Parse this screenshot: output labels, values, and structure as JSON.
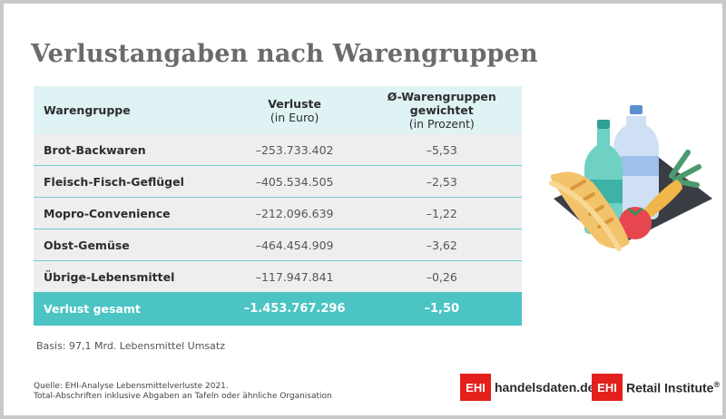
{
  "title": "Verlustangaben nach Warengruppen",
  "table": {
    "headers": [
      {
        "line1": "Warengruppe",
        "line2": "",
        "line3": ""
      },
      {
        "line1": "Verluste",
        "line2": "(in Euro)",
        "line3": ""
      },
      {
        "line1": "Ø-Warengruppen",
        "line2": "gewichtet",
        "line3": "(in Prozent)"
      }
    ],
    "rows": [
      {
        "group": "Brot-Backwaren",
        "loss": "–253.733.402",
        "pct": "–5,53"
      },
      {
        "group": "Fleisch-Fisch-Geflügel",
        "loss": "–405.534.505",
        "pct": "–2,53"
      },
      {
        "group": "Mopro-Convenience",
        "loss": "–212.096.639",
        "pct": "–1,22"
      },
      {
        "group": "Obst-Gemüse",
        "loss": "–464.454.909",
        "pct": "–3,62"
      },
      {
        "group": "Übrige-Lebensmittel",
        "loss": "–117.947.841",
        "pct": "–0,26"
      }
    ],
    "total": {
      "group": "Verlust gesamt",
      "loss": "–1.453.767.296",
      "pct": "–1,50"
    }
  },
  "basis": "Basis: 97,1 Mrd. Lebensmittel Umsatz",
  "source_line1": "Quelle: EHI-Analyse Lebensmittelverluste 2021.",
  "source_line2": "Total-Abschriften inklusive Abgaben an Tafeln oder ähnliche Organisation",
  "brand1": {
    "box": "EHI",
    "text": "handelsdaten.de"
  },
  "brand2": {
    "box": "EHI",
    "text": "Retail Institute",
    "mark": "®"
  },
  "chart_data": {
    "type": "table",
    "title": "Verlustangaben nach Warengruppen",
    "columns": [
      "Warengruppe",
      "Verluste (in Euro)",
      "Ø-Warengruppen gewichtet (in Prozent)"
    ],
    "rows": [
      [
        "Brot-Backwaren",
        -253733402,
        -5.53
      ],
      [
        "Fleisch-Fisch-Geflügel",
        -405534505,
        -2.53
      ],
      [
        "Mopro-Convenience",
        -212096639,
        -1.22
      ],
      [
        "Obst-Gemüse",
        -464454909,
        -3.62
      ],
      [
        "Übrige-Lebensmittel",
        -117947841,
        -0.26
      ],
      [
        "Verlust gesamt",
        -1453767296,
        -1.5
      ]
    ]
  },
  "colors": {
    "accent": "#4cc4c4",
    "header_bg": "#dff2f4",
    "row_bg": "#eeeeee",
    "title": "#6b6b6b",
    "brand_red": "#e3201b"
  }
}
